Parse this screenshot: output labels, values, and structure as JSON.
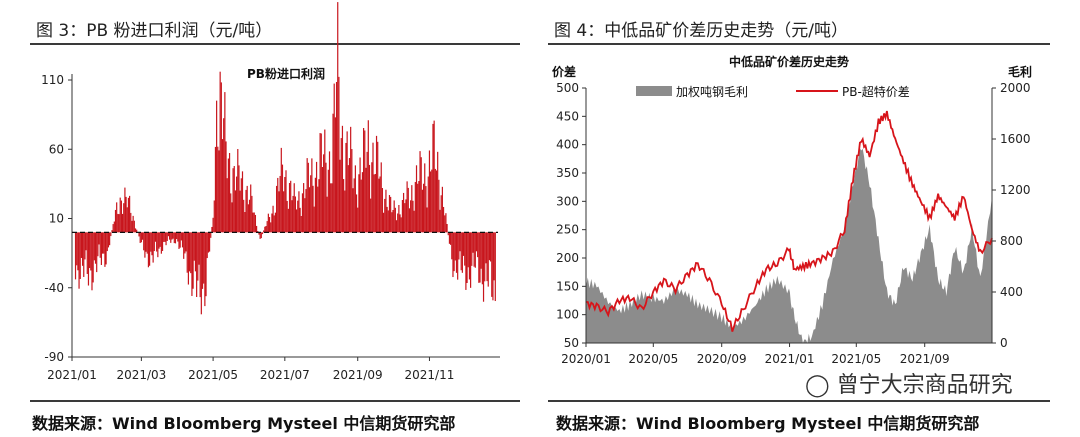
{
  "left": {
    "figure_title": "图 3：PB 粉进口利润（元/吨）",
    "source": "数据来源：Wind Bloomberg Mysteel 中信期货研究部"
  },
  "right": {
    "figure_title": "图 4：中低品矿价差历史走势（元/吨）",
    "source": "数据来源：Wind Bloomberg Mysteel 中信期货研究部"
  },
  "watermark": "曾宁大宗商品研究",
  "chart_data": [
    {
      "type": "bar",
      "title": "PB粉进口利润",
      "xlabel": "",
      "ylabel": "",
      "ylim": [
        -90,
        110
      ],
      "yticks": [
        -90,
        -40,
        10,
        60,
        110
      ],
      "xtick_labels": [
        "2021/01",
        "2021/03",
        "2021/05",
        "2021/07",
        "2021/09",
        "2021/11"
      ],
      "bar_color": "#c8161d",
      "x_range": [
        "2021/01/01",
        "2021/12/31"
      ],
      "series": [
        {
          "x": [
            "2021/01/04",
            "2021/01/15",
            "2021/01/31",
            "2021/02/10",
            "2021/02/20",
            "2021/03/01",
            "2021/03/10",
            "2021/03/20",
            "2021/03/31",
            "2021/04/10",
            "2021/04/18",
            "2021/04/25",
            "2021/05/01",
            "2021/05/05",
            "2021/05/12",
            "2021/05/20",
            "2021/05/31",
            "2021/06/10",
            "2021/06/20",
            "2021/06/30",
            "2021/07/10",
            "2021/07/20",
            "2021/07/31",
            "2021/08/10",
            "2021/08/15",
            "2021/08/20",
            "2021/08/31",
            "2021/09/05",
            "2021/09/10",
            "2021/09/20",
            "2021/09/30",
            "2021/10/10",
            "2021/10/20",
            "2021/10/31",
            "2021/11/05",
            "2021/11/10",
            "2021/11/20",
            "2021/11/30",
            "2021/12/10",
            "2021/12/20",
            "2021/12/28"
          ],
          "values": [
            -25,
            -30,
            -15,
            25,
            18,
            -10,
            -20,
            -8,
            -5,
            -25,
            -45,
            -35,
            10,
            115,
            55,
            40,
            30,
            -5,
            15,
            45,
            20,
            35,
            50,
            55,
            110,
            60,
            40,
            45,
            65,
            40,
            15,
            20,
            35,
            45,
            55,
            40,
            -20,
            -30,
            -25,
            -35,
            -45
          ]
        }
      ]
    },
    {
      "type": "area",
      "title": "中低品矿价差历史走势",
      "xlabel": "",
      "ylabel": "价差",
      "y2label": "毛利",
      "ylim": [
        50,
        500
      ],
      "y2lim": [
        0,
        2000
      ],
      "yticks": [
        50,
        100,
        150,
        200,
        250,
        300,
        350,
        400,
        450,
        500
      ],
      "y2ticks": [
        0,
        400,
        800,
        1200,
        1600,
        2000
      ],
      "xtick_labels": [
        "2020/01",
        "2020/05",
        "2020/09",
        "2021/01",
        "2021/05",
        "2021/09"
      ],
      "x_range": [
        "2020/01/01",
        "2021/12/31"
      ],
      "legend": "top",
      "series": [
        {
          "name": "加权吨钢毛利",
          "type": "area",
          "axis": "right",
          "color": "#8c8c8c",
          "x": [
            "2020/01/01",
            "2020/01/20",
            "2020/02/10",
            "2020/03/01",
            "2020/03/20",
            "2020/04/10",
            "2020/05/01",
            "2020/05/20",
            "2020/06/10",
            "2020/07/01",
            "2020/07/20",
            "2020/08/10",
            "2020/09/01",
            "2020/09/20",
            "2020/10/10",
            "2020/11/01",
            "2020/11/20",
            "2020/12/10",
            "2020/12/31",
            "2021/01/10",
            "2021/01/25",
            "2021/02/10",
            "2021/03/01",
            "2021/03/20",
            "2021/04/10",
            "2021/04/25",
            "2021/05/10",
            "2021/05/25",
            "2021/06/10",
            "2021/06/25",
            "2021/07/10",
            "2021/07/25",
            "2021/08/10",
            "2021/08/25",
            "2021/09/10",
            "2021/09/25",
            "2021/10/10",
            "2021/10/25",
            "2021/11/10",
            "2021/11/25",
            "2021/12/10",
            "2021/12/31"
          ],
          "values": [
            480,
            450,
            320,
            250,
            300,
            380,
            350,
            330,
            420,
            380,
            300,
            260,
            200,
            120,
            180,
            300,
            420,
            500,
            400,
            200,
            0,
            50,
            300,
            650,
            900,
            1250,
            1550,
            1250,
            800,
            400,
            300,
            600,
            500,
            700,
            900,
            500,
            400,
            750,
            550,
            900,
            500,
            1150
          ]
        },
        {
          "name": "PB-超特价差",
          "type": "line",
          "axis": "left",
          "color": "#d7141a",
          "x": [
            "2020/01/01",
            "2020/01/20",
            "2020/02/10",
            "2020/03/01",
            "2020/03/20",
            "2020/04/10",
            "2020/05/01",
            "2020/05/20",
            "2020/06/10",
            "2020/07/01",
            "2020/07/20",
            "2020/08/10",
            "2020/09/01",
            "2020/09/20",
            "2020/10/10",
            "2020/11/01",
            "2020/11/20",
            "2020/12/10",
            "2020/12/31",
            "2021/01/10",
            "2021/01/25",
            "2021/02/10",
            "2021/03/01",
            "2021/03/20",
            "2021/04/10",
            "2021/04/25",
            "2021/05/10",
            "2021/05/25",
            "2021/06/10",
            "2021/06/25",
            "2021/07/10",
            "2021/07/25",
            "2021/08/10",
            "2021/08/25",
            "2021/09/10",
            "2021/09/25",
            "2021/10/10",
            "2021/10/25",
            "2021/11/10",
            "2021/11/25",
            "2021/12/10",
            "2021/12/31"
          ],
          "values": [
            120,
            115,
            105,
            125,
            130,
            110,
            140,
            160,
            145,
            170,
            190,
            160,
            120,
            75,
            110,
            150,
            180,
            190,
            215,
            180,
            185,
            190,
            200,
            210,
            250,
            340,
            410,
            380,
            440,
            455,
            410,
            370,
            330,
            300,
            270,
            310,
            290,
            270,
            310,
            250,
            210,
            235
          ]
        }
      ]
    }
  ]
}
